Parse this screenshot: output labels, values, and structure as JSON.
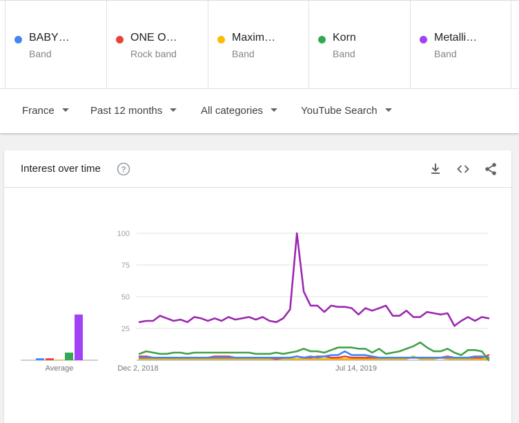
{
  "terms": [
    {
      "name": "BABY…",
      "type": "Band",
      "color": "#4285f4"
    },
    {
      "name": "ONE O…",
      "type": "Rock band",
      "color": "#ea4335"
    },
    {
      "name": "Maxim…",
      "type": "Band",
      "color": "#fbbc04"
    },
    {
      "name": "Korn",
      "type": "Band",
      "color": "#34a853"
    },
    {
      "name": "Metalli…",
      "type": "Band",
      "color": "#a142f4"
    }
  ],
  "filters": {
    "region": "France",
    "time_range": "Past 12 months",
    "category": "All categories",
    "search_type": "YouTube Search"
  },
  "card": {
    "title": "Interest over time",
    "help_icon": "help-circle-icon",
    "actions": [
      "download-icon",
      "embed-code-icon",
      "share-icon"
    ]
  },
  "chart_data": {
    "type": "line",
    "ylim": [
      0,
      100
    ],
    "y_ticks": [
      "100",
      "75",
      "50",
      "25"
    ],
    "x_tick_labels": [
      "Dec 2, 2018",
      "Jul 14, 2019"
    ],
    "average_label": "Average",
    "averages": [
      {
        "name": "BABY…",
        "value": 1.5,
        "color": "#4285f4"
      },
      {
        "name": "ONE O…",
        "value": 1.5,
        "color": "#ea4335"
      },
      {
        "name": "Maxim…",
        "value": 0.5,
        "color": "#fbbc04"
      },
      {
        "name": "Korn",
        "value": 6,
        "color": "#34a853"
      },
      {
        "name": "Metalli…",
        "value": 36,
        "color": "#a142f4"
      }
    ],
    "series": [
      {
        "name": "Metalli…",
        "color": "#9c27b0",
        "values": [
          30,
          31,
          31,
          35,
          33,
          31,
          32,
          30,
          34,
          33,
          31,
          33,
          31,
          34,
          32,
          33,
          34,
          32,
          34,
          31,
          30,
          33,
          40,
          100,
          54,
          43,
          43,
          38,
          43,
          42,
          42,
          41,
          36,
          41,
          39,
          41,
          43,
          35,
          35,
          39,
          34,
          34,
          38,
          37,
          36,
          37,
          27,
          31,
          34,
          31,
          34,
          33
        ]
      },
      {
        "name": "Korn",
        "color": "#43a047",
        "values": [
          5,
          7,
          6,
          5,
          5,
          6,
          6,
          5,
          6,
          6,
          6,
          6,
          6,
          6,
          6,
          6,
          6,
          5,
          5,
          5,
          6,
          5,
          6,
          7,
          9,
          7,
          7,
          6,
          8,
          10,
          10,
          10,
          9,
          9,
          6,
          9,
          5,
          6,
          7,
          9,
          11,
          14,
          10,
          7,
          7,
          9,
          6,
          4,
          8,
          8,
          7,
          0
        ]
      },
      {
        "name": "BABY…",
        "color": "#4285f4",
        "values": [
          2,
          2,
          2,
          2,
          2,
          2,
          2,
          2,
          2,
          2,
          2,
          2,
          2,
          2,
          2,
          2,
          2,
          2,
          2,
          2,
          2,
          2,
          2,
          3,
          2,
          3,
          2,
          3,
          4,
          4,
          7,
          4,
          4,
          4,
          3,
          2,
          2,
          2,
          2,
          2,
          2,
          2,
          2,
          2,
          2,
          2,
          2,
          2,
          2,
          3,
          3,
          2
        ]
      },
      {
        "name": "ONE O…",
        "color": "#ea4335",
        "values": [
          3,
          3,
          2,
          2,
          2,
          2,
          2,
          2,
          2,
          2,
          2,
          3,
          3,
          3,
          2,
          2,
          2,
          2,
          2,
          2,
          1,
          2,
          2,
          3,
          2,
          2,
          3,
          3,
          2,
          2,
          3,
          2,
          2,
          2,
          2,
          2,
          2,
          2,
          2,
          2,
          2,
          2,
          2,
          2,
          2,
          3,
          2,
          2,
          2,
          2,
          2,
          4
        ]
      },
      {
        "name": "Maxim…",
        "color": "#fbbc04",
        "values": [
          1,
          1,
          1,
          1,
          1,
          1,
          1,
          1,
          1,
          1,
          1,
          1,
          1,
          1,
          1,
          1,
          1,
          1,
          1,
          1,
          1,
          1,
          1,
          1,
          1,
          1,
          1,
          1,
          1,
          1,
          1,
          1,
          1,
          1,
          1,
          1,
          1,
          1,
          1,
          1,
          3,
          1,
          1,
          1,
          2,
          1,
          1,
          1,
          1,
          1,
          1,
          1
        ]
      }
    ]
  }
}
